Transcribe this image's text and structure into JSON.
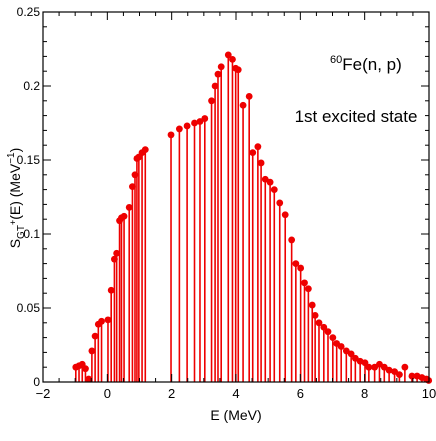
{
  "chart_data": {
    "type": "stem",
    "title_prefix": "60",
    "title_main": "Fe(n, p)",
    "subtitle": "1st excited state",
    "xlabel": "E (MeV)",
    "ylabel_main": "S",
    "ylabel_sub": "GT",
    "ylabel_sup": "+",
    "ylabel_rest": "(E)  (MeV",
    "ylabel_unit_sup": "−1",
    "ylabel_close": ")",
    "xlim": [
      -2,
      10
    ],
    "ylim": [
      0,
      0.25
    ],
    "x_ticks": [
      {
        "value": -2,
        "label": "−2"
      },
      {
        "value": 0,
        "label": "0"
      },
      {
        "value": 2,
        "label": "2"
      },
      {
        "value": 4,
        "label": "4"
      },
      {
        "value": 6,
        "label": "6"
      },
      {
        "value": 8,
        "label": "8"
      },
      {
        "value": 10,
        "label": "10"
      }
    ],
    "y_ticks": [
      {
        "value": 0,
        "label": "0"
      },
      {
        "value": 0.05,
        "label": "0.05"
      },
      {
        "value": 0.1,
        "label": "0.1"
      },
      {
        "value": 0.15,
        "label": "0.15"
      },
      {
        "value": 0.2,
        "label": "0.2"
      },
      {
        "value": 0.25,
        "label": "0.25"
      }
    ],
    "color": "#ee0000",
    "grid": false,
    "points": [
      [
        -0.98,
        0.01
      ],
      [
        -0.88,
        0.011
      ],
      [
        -0.78,
        0.012
      ],
      [
        -0.68,
        0.009
      ],
      [
        -0.58,
        0.002
      ],
      [
        -0.48,
        0.021
      ],
      [
        -0.38,
        0.031
      ],
      [
        -0.28,
        0.039
      ],
      [
        -0.18,
        0.041
      ],
      [
        0.02,
        0.042
      ],
      [
        0.12,
        0.062
      ],
      [
        0.22,
        0.083
      ],
      [
        0.29,
        0.087
      ],
      [
        0.38,
        0.109
      ],
      [
        0.44,
        0.111
      ],
      [
        0.52,
        0.112
      ],
      [
        0.68,
        0.118
      ],
      [
        0.78,
        0.132
      ],
      [
        0.86,
        0.14
      ],
      [
        0.92,
        0.151
      ],
      [
        0.98,
        0.152
      ],
      [
        1.08,
        0.155
      ],
      [
        1.18,
        0.157
      ],
      [
        1.98,
        0.167
      ],
      [
        2.24,
        0.171
      ],
      [
        2.48,
        0.173
      ],
      [
        2.71,
        0.175
      ],
      [
        2.88,
        0.176
      ],
      [
        3.03,
        0.178
      ],
      [
        3.24,
        0.19
      ],
      [
        3.35,
        0.2
      ],
      [
        3.44,
        0.208
      ],
      [
        3.54,
        0.213
      ],
      [
        3.76,
        0.221
      ],
      [
        3.89,
        0.218
      ],
      [
        3.99,
        0.212
      ],
      [
        4.07,
        0.211
      ],
      [
        4.22,
        0.187
      ],
      [
        4.41,
        0.193
      ],
      [
        4.52,
        0.155
      ],
      [
        4.68,
        0.159
      ],
      [
        4.78,
        0.148
      ],
      [
        4.91,
        0.137
      ],
      [
        5.06,
        0.135
      ],
      [
        5.19,
        0.13
      ],
      [
        5.36,
        0.121
      ],
      [
        5.53,
        0.113
      ],
      [
        5.73,
        0.096
      ],
      [
        5.86,
        0.08
      ],
      [
        6.01,
        0.077
      ],
      [
        6.13,
        0.067
      ],
      [
        6.25,
        0.063
      ],
      [
        6.37,
        0.052
      ],
      [
        6.46,
        0.045
      ],
      [
        6.58,
        0.04
      ],
      [
        6.73,
        0.037
      ],
      [
        6.86,
        0.034
      ],
      [
        7.01,
        0.03
      ],
      [
        7.13,
        0.026
      ],
      [
        7.27,
        0.024
      ],
      [
        7.43,
        0.021
      ],
      [
        7.58,
        0.019
      ],
      [
        7.71,
        0.016
      ],
      [
        7.86,
        0.014
      ],
      [
        8.01,
        0.013
      ],
      [
        8.13,
        0.01
      ],
      [
        8.31,
        0.01
      ],
      [
        8.46,
        0.012
      ],
      [
        8.61,
        0.01
      ],
      [
        8.76,
        0.008
      ],
      [
        8.93,
        0.007
      ],
      [
        9.08,
        0.005
      ],
      [
        9.25,
        0.01
      ],
      [
        9.47,
        0.004
      ],
      [
        9.63,
        0.004
      ],
      [
        9.78,
        0.003
      ],
      [
        9.92,
        0.002
      ],
      [
        9.99,
        0.001
      ]
    ]
  }
}
